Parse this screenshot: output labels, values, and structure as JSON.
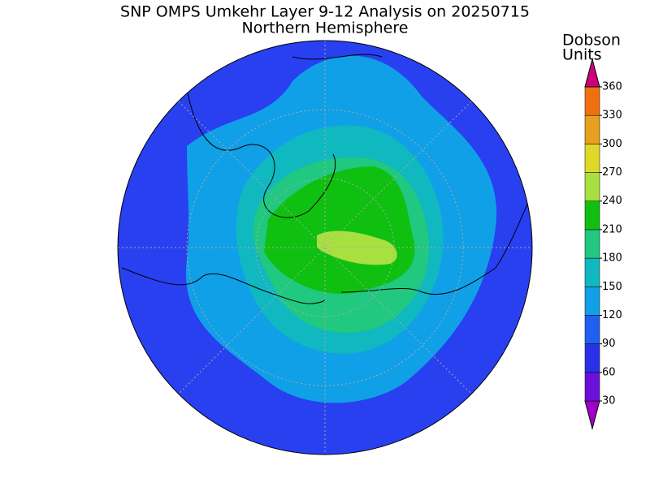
{
  "title": "SNP OMPS Umkehr Layer 9-12 Analysis on 20250715",
  "subtitle": "Northern Hemisphere",
  "colorbar": {
    "label": [
      "Dobson",
      "Units"
    ],
    "ticks": [
      30,
      60,
      90,
      120,
      150,
      180,
      210,
      240,
      270,
      300,
      330,
      360
    ],
    "colors": [
      "#a000c8",
      "#6a10d8",
      "#2a30e8",
      "#2060f0",
      "#10a0e8",
      "#10b8c0",
      "#20c880",
      "#10c010",
      "#a8e040",
      "#e0d828",
      "#e8a020",
      "#f07010",
      "#e80000",
      "#d0007a"
    ]
  }
}
